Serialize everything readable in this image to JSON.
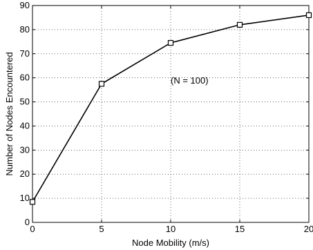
{
  "chart_data": {
    "type": "line",
    "title": "",
    "xlabel": "Node Mobility (m/s)",
    "ylabel": "Number of Nodes Encountered",
    "xlim": [
      0,
      20
    ],
    "ylim": [
      0,
      90
    ],
    "xticks": [
      0,
      5,
      10,
      15,
      20
    ],
    "yticks": [
      0,
      10,
      20,
      30,
      40,
      50,
      60,
      70,
      80,
      90
    ],
    "grid": true,
    "annotation": "(N = 100)",
    "series": [
      {
        "marker": "square",
        "color": "#000000",
        "x": [
          0,
          5,
          10,
          15,
          20
        ],
        "y": [
          8.5,
          57.5,
          74.5,
          82,
          86
        ]
      }
    ]
  }
}
